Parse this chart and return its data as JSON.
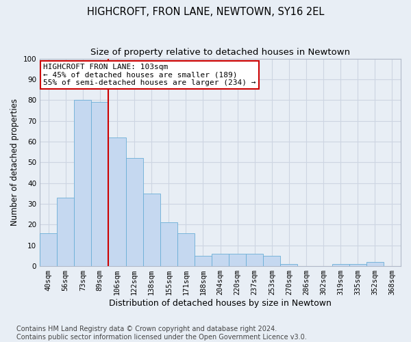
{
  "title": "HIGHCROFT, FRON LANE, NEWTOWN, SY16 2EL",
  "subtitle": "Size of property relative to detached houses in Newtown",
  "xlabel": "Distribution of detached houses by size in Newtown",
  "ylabel": "Number of detached properties",
  "categories": [
    "40sqm",
    "56sqm",
    "73sqm",
    "89sqm",
    "106sqm",
    "122sqm",
    "138sqm",
    "155sqm",
    "171sqm",
    "188sqm",
    "204sqm",
    "220sqm",
    "237sqm",
    "253sqm",
    "270sqm",
    "286sqm",
    "302sqm",
    "319sqm",
    "335sqm",
    "352sqm",
    "368sqm"
  ],
  "values": [
    16,
    33,
    80,
    79,
    62,
    52,
    35,
    21,
    16,
    5,
    6,
    6,
    6,
    5,
    1,
    0,
    0,
    1,
    1,
    2,
    0
  ],
  "bar_color": "#c5d8f0",
  "bar_edge_color": "#6aaed6",
  "vline_x_index": 3,
  "vline_color": "#cc0000",
  "annotation_line1": "HIGHCROFT FRON LANE: 103sqm",
  "annotation_line2": "← 45% of detached houses are smaller (189)",
  "annotation_line3": "55% of semi-detached houses are larger (234) →",
  "annotation_box_facecolor": "#ffffff",
  "annotation_box_edgecolor": "#cc0000",
  "ylim": [
    0,
    100
  ],
  "yticks": [
    0,
    10,
    20,
    30,
    40,
    50,
    60,
    70,
    80,
    90,
    100
  ],
  "grid_color": "#cdd5e2",
  "bg_color": "#e8eef5",
  "footer_line1": "Contains HM Land Registry data © Crown copyright and database right 2024.",
  "footer_line2": "Contains public sector information licensed under the Open Government Licence v3.0.",
  "title_fontsize": 10.5,
  "subtitle_fontsize": 9.5,
  "xlabel_fontsize": 9,
  "ylabel_fontsize": 8.5,
  "tick_fontsize": 7.5,
  "annot_fontsize": 8,
  "footer_fontsize": 7
}
